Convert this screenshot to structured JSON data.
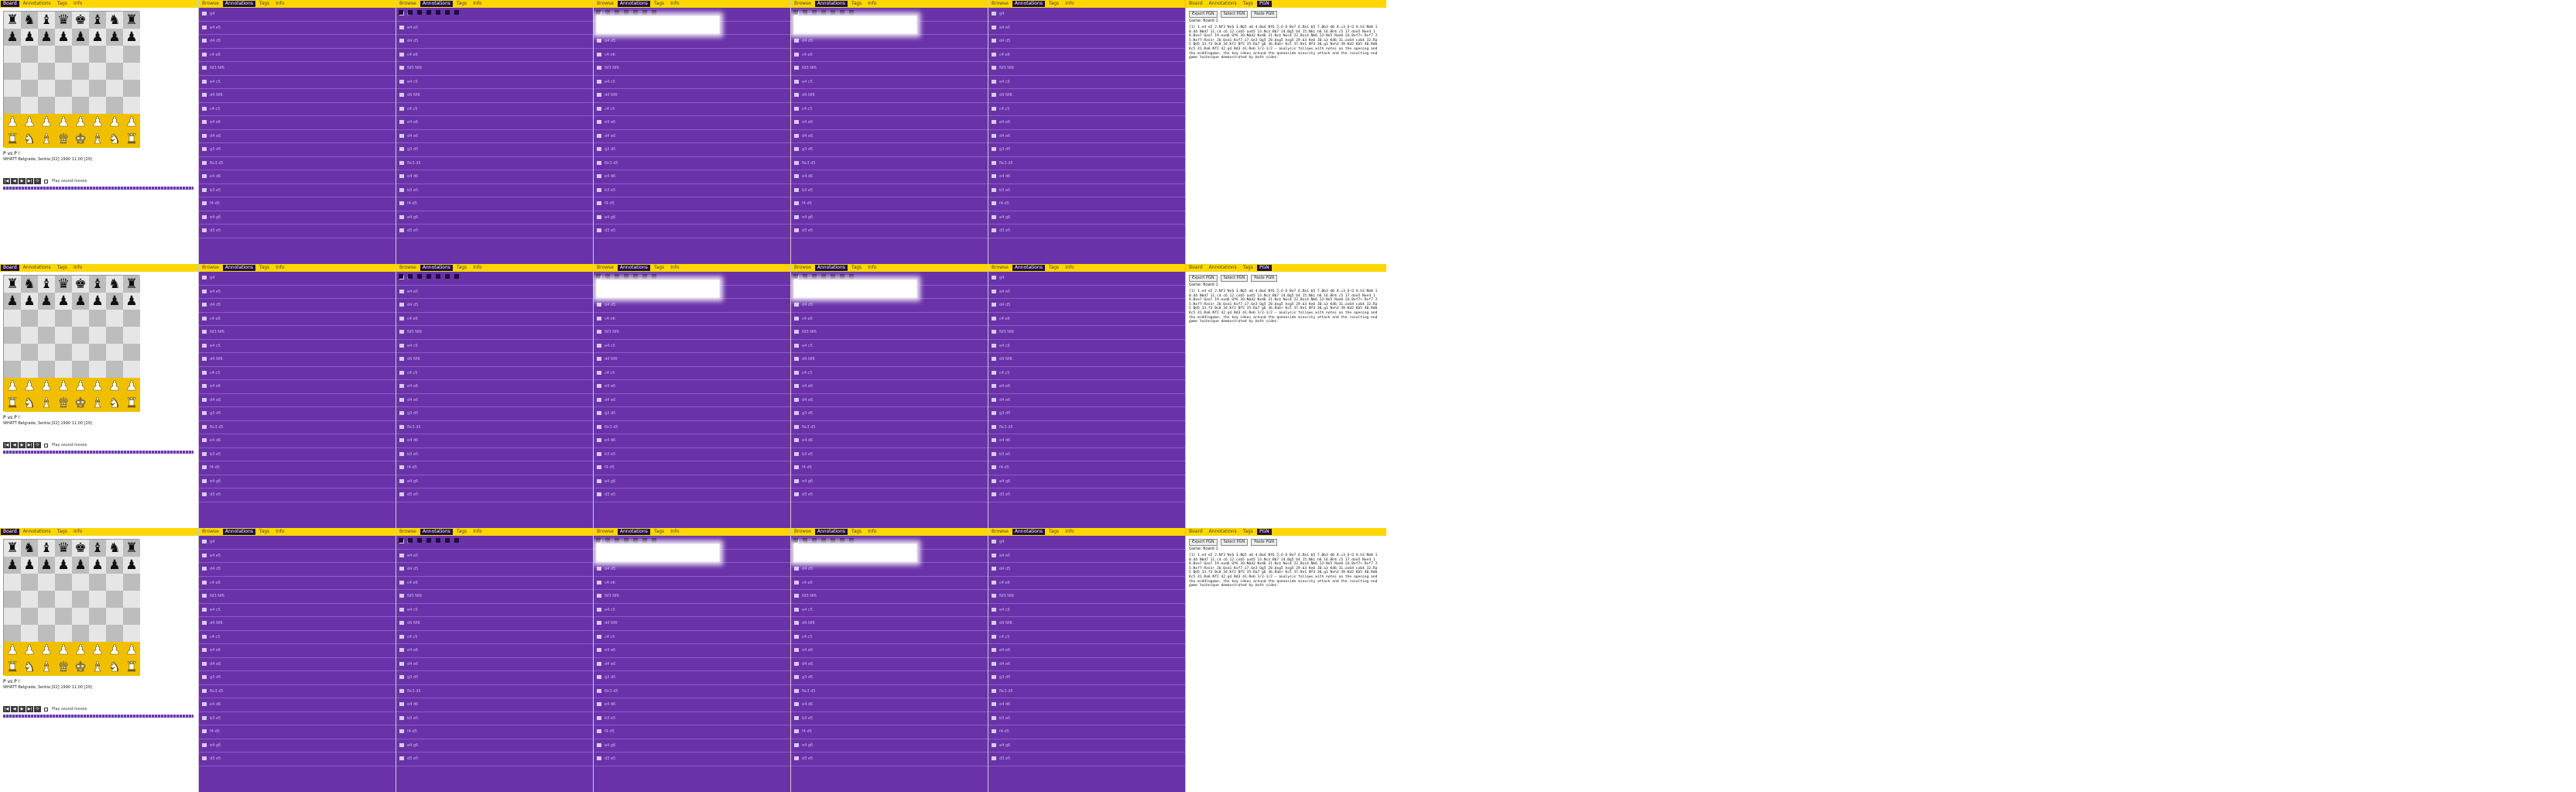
{
  "tabs": {
    "chess": [
      "Board",
      "Annotations",
      "Tags",
      "Info"
    ],
    "list": [
      "Browse",
      "Annotations",
      "Tags",
      "Info"
    ],
    "text": [
      "Board",
      "Annotations",
      "Tags",
      "PGN"
    ]
  },
  "game": {
    "caption": "P vs P !",
    "details": "WHATT Belgrade, Serbia [02] 1990 11.00 [29]",
    "checkbox_label": "Play sound moves"
  },
  "controls": [
    "|◀",
    "◀",
    "▶",
    "▶|",
    "⟳"
  ],
  "board": [
    "rnbqkbnr",
    "pppppppp",
    "........",
    "........",
    "........",
    "........",
    "PPPPPPPP",
    "RNBQKBNR"
  ],
  "pgn_panel": {
    "buttons": [
      "Export PGN",
      "Select PGN",
      "Paste PGN"
    ],
    "header": "Game: Board 1",
    "text": "[1] 1.e4 e5 2.Nf3 Nc6 3.Bb5 a6 4.Ba4 Nf6 5.O-O Be7 6.Re1 b5 7.Bb3 d6 8.c3 O-O 9.h3 Nb8 10.d4 Nbd7 11.c4 c6 12.cxb5 axb5 13.Nc3 Bb7 14.Bg5 b4 15.Nb1 h6 16.Bh4 c5 17.dxe5 Nxe4 18.Bxe7 Qxe7 19.exd6 Qf6 20.Nbd2 Nxd6 21.Nc4 Nxc4 22.Bxc4 Nb6 23.Ne5 Rae8 24.Bxf7+ Rxf7 25.Nxf7 Rxe1+ 26.Qxe1 Kxf7 27.Qe3 Qg5 28.Qxg5 hxg5 29.b3 Ke6 30.a3 Kd6 31.axb4 cxb4 32.Ra5 Nd5 33.f3 Bc8 34.Kf2 Bf5 35.Ra7 g6 36.Ra6+ Kc5 37.Ke1 Nf4 38.g3 Nxh3 39.Kd2 Kb5 40.Rd6 Kc5 41.Ra6 Nf2 42.g4 Bd3 43.Re6 1/2-1/2 — analysis follows with notes on the opening and the middlegame, the key ideas around the queenside minority attack and the resulting endgame technique demonstrated by both sides."
  },
  "list_rows": [
    "g4",
    "e4 e5",
    "d4 d5",
    "c4 e6",
    "Nf3 Nf6",
    "e4 c5",
    "d4 Nf6",
    "c4 c5",
    "e4 e6",
    "d4 e6",
    "g3 d5",
    "Nc3 d5",
    "e4 d6",
    "b3 e5",
    "f4 d5",
    "e4 g6",
    "d3 e5"
  ],
  "accent": "#6a32a8",
  "tab_color": "#ffd700"
}
